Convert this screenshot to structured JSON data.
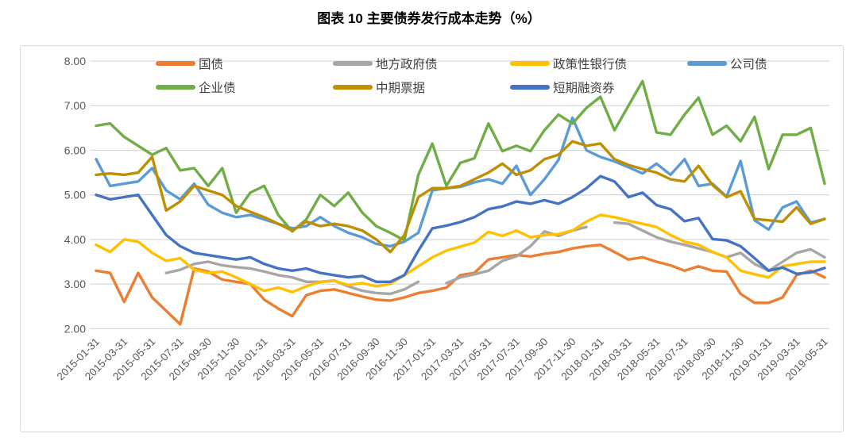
{
  "title": "图表 10 主要债券发行成本走势（%）",
  "colors": {
    "gridline": "#D9D9D9",
    "border": "#D9D9D9",
    "axis_text": "#595959",
    "legend_text": "#404040",
    "background": "#FFFFFF"
  },
  "chart_data": {
    "type": "line",
    "title": "图表 10 主要债券发行成本走势（%）",
    "ylabel": "",
    "xlabel": "",
    "ylim": [
      2,
      8
    ],
    "y_tick_step": 1,
    "grid": true,
    "legend_position": "top",
    "x_label_every": 2,
    "legend_rows": [
      [
        0,
        1,
        2,
        3
      ],
      [
        4,
        5,
        6
      ]
    ],
    "legend_cols": [
      170,
      393,
      616,
      839
    ],
    "categories": [
      "2015-01-31",
      "2015-02-28",
      "2015-03-31",
      "2015-04-30",
      "2015-05-31",
      "2015-06-30",
      "2015-07-31",
      "2015-08-31",
      "2015-09-30",
      "2015-10-31",
      "2015-11-30",
      "2015-12-31",
      "2016-01-31",
      "2016-02-29",
      "2016-03-31",
      "2016-04-30",
      "2016-05-31",
      "2016-06-30",
      "2016-07-31",
      "2016-08-31",
      "2016-09-30",
      "2016-10-31",
      "2016-11-30",
      "2016-12-31",
      "2017-01-31",
      "2017-02-28",
      "2017-03-31",
      "2017-04-30",
      "2017-05-31",
      "2017-06-30",
      "2017-07-31",
      "2017-08-31",
      "2017-09-30",
      "2017-10-31",
      "2017-11-30",
      "2017-12-31",
      "2018-01-31",
      "2018-02-28",
      "2018-03-31",
      "2018-04-30",
      "2018-05-31",
      "2018-06-30",
      "2018-07-31",
      "2018-08-31",
      "2018-09-30",
      "2018-10-31",
      "2018-11-30",
      "2018-12-31",
      "2019-01-31",
      "2019-02-28",
      "2019-03-31",
      "2019-04-30",
      "2019-05-31"
    ],
    "series": [
      {
        "name": "国债",
        "color": "#ED7D31",
        "values": [
          3.3,
          3.25,
          2.6,
          3.25,
          2.7,
          2.4,
          2.1,
          3.35,
          3.28,
          3.1,
          3.05,
          3.0,
          2.65,
          2.45,
          2.28,
          2.75,
          2.85,
          2.88,
          2.8,
          2.72,
          2.65,
          2.63,
          2.7,
          2.8,
          2.85,
          2.92,
          3.2,
          3.25,
          3.55,
          3.6,
          3.65,
          3.62,
          3.68,
          3.72,
          3.8,
          3.85,
          3.88,
          3.72,
          3.55,
          3.6,
          3.5,
          3.42,
          3.3,
          3.4,
          3.3,
          3.28,
          2.78,
          2.58,
          2.58,
          2.7,
          3.2,
          3.3,
          3.15
        ]
      },
      {
        "name": "地方政府债",
        "color": "#A6A6A6",
        "values": [
          null,
          null,
          null,
          null,
          null,
          3.25,
          3.32,
          3.45,
          3.5,
          3.42,
          3.38,
          3.35,
          3.28,
          3.2,
          3.15,
          3.05,
          3.05,
          3.08,
          2.95,
          2.85,
          2.8,
          2.78,
          2.88,
          3.05,
          null,
          3.02,
          3.15,
          3.22,
          3.3,
          3.52,
          3.62,
          3.85,
          4.18,
          4.08,
          4.2,
          4.28,
          null,
          4.38,
          4.35,
          4.2,
          4.05,
          3.95,
          3.88,
          3.8,
          3.72,
          3.6,
          3.7,
          3.45,
          3.3,
          3.5,
          3.7,
          3.78,
          3.6
        ]
      },
      {
        "name": "政策性银行债",
        "color": "#FFC000",
        "values": [
          3.88,
          3.72,
          4.0,
          3.95,
          3.7,
          3.52,
          3.58,
          3.32,
          3.25,
          3.28,
          3.15,
          3.0,
          2.85,
          2.92,
          2.82,
          2.95,
          3.05,
          3.07,
          2.98,
          3.02,
          2.95,
          3.0,
          3.2,
          3.4,
          3.6,
          3.75,
          3.84,
          3.93,
          4.17,
          4.08,
          4.2,
          4.05,
          4.1,
          4.12,
          4.2,
          4.4,
          4.55,
          4.5,
          4.42,
          4.35,
          4.28,
          4.1,
          3.95,
          3.88,
          3.72,
          3.6,
          3.3,
          3.22,
          3.15,
          3.4,
          3.45,
          3.5,
          3.5
        ]
      },
      {
        "name": "公司债",
        "color": "#5B9BD5",
        "values": [
          5.8,
          5.2,
          5.25,
          5.3,
          5.6,
          5.1,
          4.9,
          5.25,
          4.78,
          4.6,
          4.5,
          4.55,
          4.45,
          4.35,
          4.25,
          4.3,
          4.5,
          4.3,
          4.15,
          4.05,
          3.9,
          3.85,
          3.95,
          4.15,
          5.1,
          5.15,
          5.18,
          5.28,
          5.35,
          5.25,
          5.65,
          5.0,
          5.35,
          5.78,
          6.73,
          6.0,
          5.85,
          5.75,
          5.62,
          5.48,
          5.7,
          5.45,
          5.8,
          5.2,
          5.25,
          4.96,
          5.76,
          4.43,
          4.22,
          4.72,
          4.85,
          4.38,
          4.46
        ]
      },
      {
        "name": "企业债",
        "color": "#70AD47",
        "values": [
          6.55,
          6.6,
          6.3,
          6.1,
          5.9,
          6.05,
          5.55,
          5.6,
          5.2,
          5.6,
          4.6,
          5.05,
          5.2,
          4.55,
          4.18,
          4.45,
          5.0,
          4.75,
          5.05,
          4.6,
          4.3,
          4.15,
          3.98,
          5.45,
          6.15,
          5.2,
          5.72,
          5.82,
          6.6,
          5.98,
          6.1,
          5.98,
          6.45,
          6.8,
          6.6,
          6.95,
          7.2,
          6.45,
          7.0,
          7.55,
          6.4,
          6.35,
          6.8,
          7.18,
          6.35,
          6.55,
          6.2,
          6.75,
          5.58,
          6.35,
          6.35,
          6.5,
          5.25
        ]
      },
      {
        "name": "中期票据",
        "color": "#BF8F00",
        "values": [
          5.45,
          5.48,
          5.45,
          5.5,
          5.85,
          4.65,
          4.85,
          5.2,
          5.1,
          5.0,
          4.75,
          4.62,
          4.5,
          4.35,
          4.2,
          4.4,
          4.3,
          4.35,
          4.3,
          4.2,
          4.0,
          3.72,
          4.1,
          4.95,
          5.15,
          5.15,
          5.2,
          5.35,
          5.5,
          5.7,
          5.45,
          5.55,
          5.8,
          5.9,
          6.2,
          6.1,
          6.15,
          5.8,
          5.67,
          5.58,
          5.5,
          5.35,
          5.3,
          5.65,
          5.22,
          4.95,
          5.08,
          4.46,
          4.43,
          4.4,
          4.72,
          4.35,
          4.46
        ]
      },
      {
        "name": "短期融资券",
        "color": "#4472C4",
        "values": [
          5.0,
          4.9,
          4.95,
          5.0,
          4.55,
          4.1,
          3.85,
          3.7,
          3.65,
          3.6,
          3.55,
          3.6,
          3.45,
          3.35,
          3.3,
          3.35,
          3.25,
          3.2,
          3.15,
          3.18,
          3.05,
          3.05,
          3.2,
          3.75,
          4.25,
          4.31,
          4.39,
          4.5,
          4.68,
          4.74,
          4.85,
          4.8,
          4.88,
          4.8,
          4.95,
          5.15,
          5.42,
          5.3,
          4.95,
          5.05,
          4.77,
          4.68,
          4.41,
          4.48,
          4.01,
          3.98,
          3.85,
          3.58,
          3.3,
          3.37,
          3.23,
          3.26,
          3.36
        ]
      }
    ],
    "y_tick_labels": [
      "8.00",
      "7.00",
      "6.00",
      "5.00",
      "4.00",
      "3.00",
      "2.00"
    ]
  }
}
